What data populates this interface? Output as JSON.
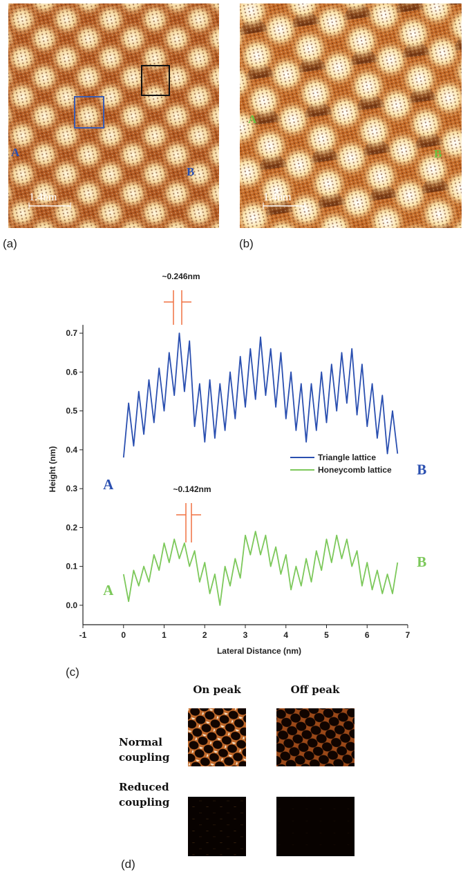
{
  "figure": {
    "panel_a": {
      "label": "(a)",
      "scale_bar": "1.4nm",
      "point_a": "A",
      "point_b": "B"
    },
    "panel_b": {
      "label": "(b)",
      "scale_bar": "1.4nm",
      "point_a": "A",
      "point_b": "B"
    },
    "panel_c": {
      "label": "(c)"
    },
    "panel_d": {
      "label": "(d)",
      "columns": [
        "On peak",
        "Off peak"
      ],
      "rows": [
        "Normal coupling",
        "Reduced coupling"
      ]
    }
  },
  "chart_data": {
    "type": "line",
    "x_label": "Lateral Distance (nm)",
    "y_label": "Height (nm)",
    "xlim": [
      -1,
      7
    ],
    "xticks": [
      -1,
      0,
      1,
      2,
      3,
      4,
      5,
      6,
      7
    ],
    "ylim": [
      -0.05,
      0.75
    ],
    "yticks": [
      {
        "value": 0,
        "label": "0.0"
      },
      0.1,
      0.2,
      0.3,
      0.4,
      0.5,
      0.6,
      0.7
    ],
    "legend": "right",
    "x": [
      0,
      0.125,
      0.25,
      0.375,
      0.5,
      0.625,
      0.75,
      0.875,
      1,
      1.125,
      1.25,
      1.375,
      1.5,
      1.625,
      1.75,
      1.875,
      2,
      2.125,
      2.25,
      2.375,
      2.5,
      2.625,
      2.75,
      2.875,
      3,
      3.125,
      3.25,
      3.375,
      3.5,
      3.625,
      3.75,
      3.875,
      4,
      4.125,
      4.25,
      4.375,
      4.5,
      4.625,
      4.75,
      4.875,
      5,
      5.125,
      5.25,
      5.375,
      5.5,
      5.625,
      5.75,
      5.875,
      6,
      6.125,
      6.25,
      6.375,
      6.5,
      6.625,
      6.75
    ],
    "series": [
      {
        "name": "Triangle lattice",
        "color": "#2a4fb0",
        "start_label": "A",
        "end_label": "B",
        "spacing_label": "~0.246nm",
        "values": [
          0.38,
          0.52,
          0.41,
          0.55,
          0.44,
          0.58,
          0.47,
          0.61,
          0.5,
          0.65,
          0.54,
          0.7,
          0.55,
          0.68,
          0.46,
          0.57,
          0.42,
          0.58,
          0.43,
          0.57,
          0.45,
          0.6,
          0.48,
          0.64,
          0.51,
          0.66,
          0.53,
          0.69,
          0.54,
          0.66,
          0.51,
          0.65,
          0.48,
          0.6,
          0.45,
          0.57,
          0.42,
          0.57,
          0.45,
          0.6,
          0.47,
          0.62,
          0.5,
          0.65,
          0.52,
          0.66,
          0.49,
          0.62,
          0.46,
          0.57,
          0.43,
          0.54,
          0.39,
          0.5,
          0.39
        ]
      },
      {
        "name": "Honeycomb lattice",
        "color": "#7cc85a",
        "start_label": "A",
        "end_label": "B",
        "spacing_label": "~0.142nm",
        "values": [
          0.08,
          0.01,
          0.09,
          0.05,
          0.1,
          0.06,
          0.13,
          0.09,
          0.16,
          0.11,
          0.17,
          0.12,
          0.16,
          0.1,
          0.14,
          0.06,
          0.11,
          0.03,
          0.08,
          0.0,
          0.1,
          0.05,
          0.12,
          0.07,
          0.18,
          0.13,
          0.19,
          0.13,
          0.18,
          0.1,
          0.15,
          0.08,
          0.13,
          0.04,
          0.1,
          0.05,
          0.12,
          0.06,
          0.14,
          0.09,
          0.17,
          0.11,
          0.18,
          0.12,
          0.17,
          0.1,
          0.14,
          0.05,
          0.11,
          0.04,
          0.09,
          0.03,
          0.08,
          0.03,
          0.11
        ]
      }
    ]
  }
}
